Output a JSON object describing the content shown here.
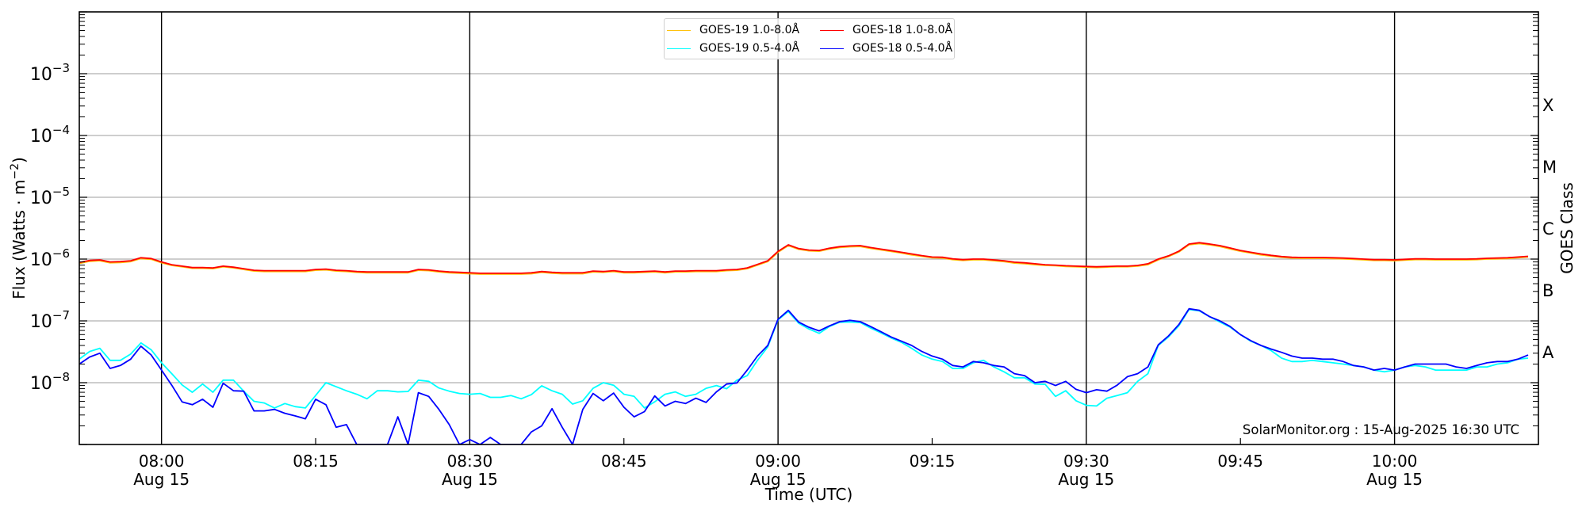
{
  "chart_data": {
    "type": "line",
    "title": "",
    "xlabel": "Time (UTC)",
    "ylabel": {
      "main": "Flux (Watts · m",
      "sup": "−2",
      "end": ")"
    },
    "y2label": "GOES Class",
    "yscale": "log",
    "ylim": [
      1e-09,
      0.01
    ],
    "xlim": [
      "07:52",
      "10:14"
    ],
    "grid": "horizontal at decades",
    "legend_placement": "top-center",
    "y_ticks": [
      {
        "value": 0.001,
        "base": "10",
        "exp": "−3"
      },
      {
        "value": 0.0001,
        "base": "10",
        "exp": "−4"
      },
      {
        "value": 1e-05,
        "base": "10",
        "exp": "−5"
      },
      {
        "value": 1e-06,
        "base": "10",
        "exp": "−6"
      },
      {
        "value": 1e-07,
        "base": "10",
        "exp": "−7"
      },
      {
        "value": 1e-08,
        "base": "10",
        "exp": "−8"
      }
    ],
    "goes_classes": [
      {
        "label": "X",
        "value": 0.000316
      },
      {
        "label": "M",
        "value": 3.16e-05
      },
      {
        "label": "C",
        "value": 3.16e-06
      },
      {
        "label": "B",
        "value": 3.16e-07
      },
      {
        "label": "A",
        "value": 3.16e-08
      }
    ],
    "x_ticks": [
      {
        "time": "08:00",
        "label": "08:00",
        "date": "Aug 15",
        "major": true
      },
      {
        "time": "08:15",
        "label": "08:15",
        "date": "",
        "major": false
      },
      {
        "time": "08:30",
        "label": "08:30",
        "date": "Aug 15",
        "major": true
      },
      {
        "time": "08:45",
        "label": "08:45",
        "date": "",
        "major": false
      },
      {
        "time": "09:00",
        "label": "09:00",
        "date": "Aug 15",
        "major": true
      },
      {
        "time": "09:15",
        "label": "09:15",
        "date": "",
        "major": false
      },
      {
        "time": "09:30",
        "label": "09:30",
        "date": "Aug 15",
        "major": true
      },
      {
        "time": "09:45",
        "label": "09:45",
        "date": "",
        "major": false
      },
      {
        "time": "10:00",
        "label": "10:00",
        "date": "Aug 15",
        "major": true
      }
    ],
    "x": [
      "07:52",
      "07:53",
      "07:54",
      "07:55",
      "07:56",
      "07:57",
      "07:58",
      "07:59",
      "08:00",
      "08:01",
      "08:02",
      "08:03",
      "08:04",
      "08:05",
      "08:06",
      "08:07",
      "08:08",
      "08:09",
      "08:10",
      "08:11",
      "08:12",
      "08:13",
      "08:14",
      "08:15",
      "08:16",
      "08:17",
      "08:18",
      "08:19",
      "08:20",
      "08:21",
      "08:22",
      "08:23",
      "08:24",
      "08:25",
      "08:26",
      "08:27",
      "08:28",
      "08:29",
      "08:30",
      "08:31",
      "08:32",
      "08:33",
      "08:34",
      "08:35",
      "08:36",
      "08:37",
      "08:38",
      "08:39",
      "08:40",
      "08:41",
      "08:42",
      "08:43",
      "08:44",
      "08:45",
      "08:46",
      "08:47",
      "08:48",
      "08:49",
      "08:50",
      "08:51",
      "08:52",
      "08:53",
      "08:54",
      "08:55",
      "08:56",
      "08:57",
      "08:58",
      "08:59",
      "09:00",
      "09:01",
      "09:02",
      "09:03",
      "09:04",
      "09:05",
      "09:06",
      "09:07",
      "09:08",
      "09:09",
      "09:10",
      "09:11",
      "09:12",
      "09:13",
      "09:14",
      "09:15",
      "09:16",
      "09:17",
      "09:18",
      "09:19",
      "09:20",
      "09:21",
      "09:22",
      "09:23",
      "09:24",
      "09:25",
      "09:26",
      "09:27",
      "09:28",
      "09:29",
      "09:30",
      "09:31",
      "09:32",
      "09:33",
      "09:34",
      "09:35",
      "09:36",
      "09:37",
      "09:38",
      "09:39",
      "09:40",
      "09:41",
      "09:42",
      "09:43",
      "09:44",
      "09:45",
      "09:46",
      "09:47",
      "09:48",
      "09:49",
      "09:50",
      "09:51",
      "09:52",
      "09:53",
      "09:54",
      "09:55",
      "09:56",
      "09:57",
      "09:58",
      "09:59",
      "10:00",
      "10:01",
      "10:02",
      "10:03",
      "10:04",
      "10:05",
      "10:06",
      "10:07",
      "10:08",
      "10:09",
      "10:10",
      "10:11",
      "10:12",
      "10:13"
    ],
    "series": [
      {
        "name": "GOES-19 1.0-8.0Å",
        "color": "#ffc20e",
        "values": [
          8.5e-07,
          9.2e-07,
          9.4e-07,
          8.7e-07,
          8.8e-07,
          9.1e-07,
          1.02e-06,
          9.9e-07,
          8.7e-07,
          7.9e-07,
          7.5e-07,
          7.1e-07,
          7.1e-07,
          7e-07,
          7.5e-07,
          7.2e-07,
          6.8e-07,
          6.4e-07,
          6.3e-07,
          6.3e-07,
          6.3e-07,
          6.3e-07,
          6.3e-07,
          6.6e-07,
          6.7e-07,
          6.4e-07,
          6.3e-07,
          6.1e-07,
          6e-07,
          6e-07,
          6e-07,
          6e-07,
          6e-07,
          6.6e-07,
          6.5e-07,
          6.2e-07,
          6e-07,
          5.9e-07,
          5.8e-07,
          5.7e-07,
          5.7e-07,
          5.7e-07,
          5.7e-07,
          5.7e-07,
          5.8e-07,
          6.1e-07,
          5.9e-07,
          5.8e-07,
          5.8e-07,
          5.8e-07,
          6.2e-07,
          6.1e-07,
          6.3e-07,
          6e-07,
          6e-07,
          6.1e-07,
          6.2e-07,
          6e-07,
          6.2e-07,
          6.2e-07,
          6.3e-07,
          6.3e-07,
          6.3e-07,
          6.5e-07,
          6.6e-07,
          7e-07,
          8e-07,
          9.1e-07,
          1.29e-06,
          1.65e-06,
          1.44e-06,
          1.36e-06,
          1.34e-06,
          1.46e-06,
          1.54e-06,
          1.58e-06,
          1.6e-06,
          1.49e-06,
          1.41e-06,
          1.33e-06,
          1.25e-06,
          1.17e-06,
          1.11e-06,
          1.05e-06,
          1.04e-06,
          9.8e-07,
          9.5e-07,
          9.7e-07,
          9.7e-07,
          9.4e-07,
          9.1e-07,
          8.6e-07,
          8.4e-07,
          8.1e-07,
          7.9e-07,
          7.8e-07,
          7.6e-07,
          7.5e-07,
          7.4e-07,
          7.3e-07,
          7.4e-07,
          7.5e-07,
          7.5e-07,
          7.7e-07,
          8.1e-07,
          9.7e-07,
          1.1e-06,
          1.3e-06,
          1.7e-06,
          1.78e-06,
          1.7e-06,
          1.6e-06,
          1.46e-06,
          1.34e-06,
          1.25e-06,
          1.17e-06,
          1.12e-06,
          1.07e-06,
          1.04e-06,
          1.03e-06,
          1.03e-06,
          1.03e-06,
          1.02e-06,
          1.01e-06,
          9.9e-07,
          9.7e-07,
          9.5e-07,
          9.5e-07,
          9.4e-07,
          9.6e-07,
          9.8e-07,
          9.8e-07,
          9.7e-07,
          9.7e-07,
          9.7e-07,
          9.7e-07,
          9.8e-07,
          1e-06,
          1.01e-06,
          1.02e-06,
          1.05e-06,
          1.08e-06
        ]
      },
      {
        "name": "GOES-18 1.0-8.0Å",
        "color": "#ff0000",
        "values": [
          8.8e-07,
          9.5e-07,
          9.7e-07,
          9e-07,
          9.1e-07,
          9.4e-07,
          1.05e-06,
          1.02e-06,
          9e-07,
          8.1e-07,
          7.7e-07,
          7.3e-07,
          7.3e-07,
          7.2e-07,
          7.7e-07,
          7.4e-07,
          7e-07,
          6.6e-07,
          6.5e-07,
          6.5e-07,
          6.5e-07,
          6.5e-07,
          6.5e-07,
          6.8e-07,
          6.9e-07,
          6.6e-07,
          6.5e-07,
          6.3e-07,
          6.2e-07,
          6.2e-07,
          6.2e-07,
          6.2e-07,
          6.2e-07,
          6.8e-07,
          6.7e-07,
          6.4e-07,
          6.2e-07,
          6.1e-07,
          6e-07,
          5.9e-07,
          5.9e-07,
          5.9e-07,
          5.9e-07,
          5.9e-07,
          6e-07,
          6.3e-07,
          6.1e-07,
          6e-07,
          6e-07,
          6e-07,
          6.4e-07,
          6.3e-07,
          6.5e-07,
          6.2e-07,
          6.2e-07,
          6.3e-07,
          6.4e-07,
          6.2e-07,
          6.4e-07,
          6.4e-07,
          6.5e-07,
          6.5e-07,
          6.5e-07,
          6.7e-07,
          6.8e-07,
          7.2e-07,
          8.2e-07,
          9.4e-07,
          1.33e-06,
          1.7e-06,
          1.48e-06,
          1.4e-06,
          1.38e-06,
          1.5e-06,
          1.59e-06,
          1.63e-06,
          1.65e-06,
          1.54e-06,
          1.45e-06,
          1.37e-06,
          1.29e-06,
          1.21e-06,
          1.14e-06,
          1.08e-06,
          1.07e-06,
          1.01e-06,
          9.8e-07,
          1e-06,
          1e-06,
          9.7e-07,
          9.4e-07,
          8.9e-07,
          8.7e-07,
          8.4e-07,
          8.1e-07,
          8e-07,
          7.8e-07,
          7.7e-07,
          7.6e-07,
          7.5e-07,
          7.6e-07,
          7.7e-07,
          7.7e-07,
          7.9e-07,
          8.4e-07,
          1e-06,
          1.13e-06,
          1.34e-06,
          1.75e-06,
          1.84e-06,
          1.75e-06,
          1.65e-06,
          1.51e-06,
          1.38e-06,
          1.29e-06,
          1.21e-06,
          1.15e-06,
          1.1e-06,
          1.07e-06,
          1.06e-06,
          1.06e-06,
          1.06e-06,
          1.05e-06,
          1.04e-06,
          1.02e-06,
          1e-06,
          9.8e-07,
          9.8e-07,
          9.7e-07,
          9.9e-07,
          1.01e-06,
          1.01e-06,
          1e-06,
          1e-06,
          1e-06,
          1e-06,
          1.01e-06,
          1.03e-06,
          1.04e-06,
          1.05e-06,
          1.08e-06,
          1.11e-06
        ]
      },
      {
        "name": "GOES-19 0.5-4.0Å",
        "color": "#00ffff",
        "values": [
          2.4e-08,
          3.2e-08,
          3.6e-08,
          2.3e-08,
          2.3e-08,
          2.9e-08,
          4.4e-08,
          3.4e-08,
          2.1e-08,
          1.4e-08,
          9.2e-09,
          7e-09,
          9.5e-09,
          7e-09,
          1.1e-08,
          1.1e-08,
          7.3e-09,
          5e-09,
          4.7e-09,
          3.9e-09,
          4.6e-09,
          4.1e-09,
          3.9e-09,
          6.2e-09,
          1e-08,
          8.6e-09,
          7.4e-09,
          6.5e-09,
          5.5e-09,
          7.4e-09,
          7.4e-09,
          7.1e-09,
          7.2e-09,
          1.1e-08,
          1.05e-08,
          8.2e-09,
          7.3e-09,
          6.7e-09,
          6.5e-09,
          6.7e-09,
          5.8e-09,
          5.8e-09,
          6.2e-09,
          5.5e-09,
          6.4e-09,
          8.9e-09,
          7.4e-09,
          6.5e-09,
          4.5e-09,
          5.1e-09,
          8.1e-09,
          1e-08,
          9.1e-09,
          6.5e-09,
          6e-09,
          3.9e-09,
          4.9e-09,
          6.5e-09,
          7.1e-09,
          6e-09,
          6.5e-09,
          8.1e-09,
          9e-09,
          8e-09,
          1.1e-08,
          1.3e-08,
          2.3e-08,
          3.8e-08,
          1.04e-07,
          1.42e-07,
          9.2e-08,
          7.4e-08,
          6.3e-08,
          8.1e-08,
          9.5e-08,
          9.6e-08,
          9.4e-08,
          7.7e-08,
          6.4e-08,
          5.3e-08,
          4.5e-08,
          3.6e-08,
          2.8e-08,
          2.4e-08,
          2.2e-08,
          1.7e-08,
          1.7e-08,
          2.1e-08,
          2.3e-08,
          1.8e-08,
          1.5e-08,
          1.2e-08,
          1.2e-08,
          9.5e-09,
          9.4e-09,
          6e-09,
          7.4e-09,
          5.1e-09,
          4.3e-09,
          4.2e-09,
          5.6e-09,
          6.2e-09,
          6.9e-09,
          1.05e-08,
          1.4e-08,
          4e-08,
          5.5e-08,
          8.3e-08,
          1.53e-07,
          1.45e-07,
          1.17e-07,
          9.6e-08,
          7.9e-08,
          6e-08,
          4.7e-08,
          4e-08,
          3.3e-08,
          2.5e-08,
          2.2e-08,
          2.2e-08,
          2.3e-08,
          2.2e-08,
          2.1e-08,
          2e-08,
          1.9e-08,
          1.8e-08,
          1.6e-08,
          1.5e-08,
          1.6e-08,
          1.8e-08,
          1.9e-08,
          1.8e-08,
          1.6e-08,
          1.6e-08,
          1.6e-08,
          1.6e-08,
          1.8e-08,
          1.8e-08,
          2e-08,
          2.1e-08,
          2.4e-08,
          2.5e-08
        ]
      },
      {
        "name": "GOES-18 0.5-4.0Å",
        "color": "#0000ff",
        "values": [
          2e-08,
          2.6e-08,
          3e-08,
          1.7e-08,
          1.9e-08,
          2.4e-08,
          3.9e-08,
          2.8e-08,
          1.6e-08,
          9.1e-09,
          4.9e-09,
          4.4e-09,
          5.4e-09,
          4e-09,
          9.8e-09,
          7.4e-09,
          7.3e-09,
          3.5e-09,
          3.5e-09,
          3.7e-09,
          3.2e-09,
          2.9e-09,
          2.6e-09,
          5.4e-09,
          4.4e-09,
          1.9e-09,
          2.1e-09,
          1e-09,
          1e-09,
          1e-09,
          1e-09,
          2.8e-09,
          1e-09,
          6.9e-09,
          6e-09,
          3.7e-09,
          2.1e-09,
          1e-09,
          1.2e-09,
          1e-09,
          1.3e-09,
          1e-09,
          1e-09,
          1e-09,
          1.6e-09,
          2e-09,
          3.8e-09,
          1.9e-09,
          1e-09,
          3.7e-09,
          6.7e-09,
          5.1e-09,
          6.8e-09,
          4e-09,
          2.8e-09,
          3.4e-09,
          6.1e-09,
          4.2e-09,
          5e-09,
          4.6e-09,
          5.6e-09,
          4.8e-09,
          7.1e-09,
          9.5e-09,
          9.9e-09,
          1.6e-08,
          2.7e-08,
          4e-08,
          1.06e-07,
          1.48e-07,
          9.6e-08,
          7.9e-08,
          6.9e-08,
          8.3e-08,
          9.7e-08,
          1.02e-07,
          9.7e-08,
          8.1e-08,
          6.7e-08,
          5.5e-08,
          4.7e-08,
          4e-08,
          3.2e-08,
          2.7e-08,
          2.4e-08,
          1.9e-08,
          1.8e-08,
          2.2e-08,
          2.1e-08,
          1.9e-08,
          1.8e-08,
          1.4e-08,
          1.3e-08,
          1e-08,
          1.05e-08,
          9e-09,
          1.05e-08,
          7.8e-09,
          6.9e-09,
          7.7e-09,
          7.3e-09,
          9.1e-09,
          1.25e-08,
          1.4e-08,
          1.8e-08,
          4.1e-08,
          5.7e-08,
          8.7e-08,
          1.57e-07,
          1.48e-07,
          1.17e-07,
          1e-07,
          8.1e-08,
          6e-08,
          4.8e-08,
          4e-08,
          3.5e-08,
          3.1e-08,
          2.7e-08,
          2.5e-08,
          2.5e-08,
          2.4e-08,
          2.4e-08,
          2.2e-08,
          1.9e-08,
          1.8e-08,
          1.6e-08,
          1.7e-08,
          1.6e-08,
          1.8e-08,
          2e-08,
          2e-08,
          2e-08,
          2e-08,
          1.8e-08,
          1.7e-08,
          1.9e-08,
          2.1e-08,
          2.2e-08,
          2.2e-08,
          2.4e-08,
          2.8e-08
        ]
      }
    ],
    "legend_order": [
      0,
      2,
      1,
      3
    ],
    "annotation": "SolarMonitor.org : 15-Aug-2025 16:30 UTC"
  }
}
